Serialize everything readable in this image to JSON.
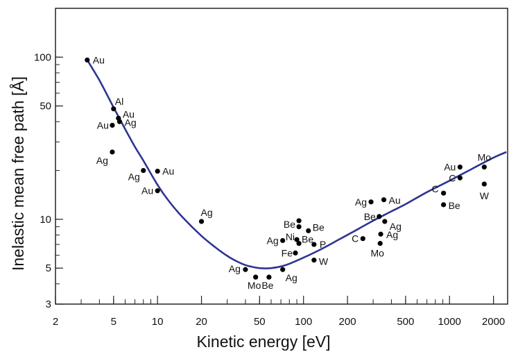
{
  "chart_data": {
    "type": "scatter",
    "xlabel": "Kinetic energy [eV]",
    "ylabel": "Inelastic mean free path [Å]",
    "xscale": "log",
    "yscale": "log",
    "xlim": [
      2,
      2500
    ],
    "ylim": [
      3,
      200
    ],
    "grid": false,
    "x_ticks": [
      {
        "value": 2,
        "label": "2"
      },
      {
        "value": 5,
        "label": "5"
      },
      {
        "value": 10,
        "label": "10"
      },
      {
        "value": 20,
        "label": "20"
      },
      {
        "value": 50,
        "label": "50"
      },
      {
        "value": 100,
        "label": "100"
      },
      {
        "value": 200,
        "label": "200"
      },
      {
        "value": 500,
        "label": "500"
      },
      {
        "value": 1000,
        "label": "1000"
      },
      {
        "value": 2000,
        "label": "2000"
      }
    ],
    "y_ticks": [
      {
        "value": 3,
        "label": "3"
      },
      {
        "value": 5,
        "label": "5"
      },
      {
        "value": 10,
        "label": "10"
      },
      {
        "value": 50,
        "label": "50"
      },
      {
        "value": 100,
        "label": "100"
      }
    ],
    "points": [
      {
        "label": "Au",
        "x": 3.3,
        "y": 96
      },
      {
        "label": "Al",
        "x": 5,
        "y": 48
      },
      {
        "label": "Au",
        "x": 5.4,
        "y": 42
      },
      {
        "label": "Au",
        "x": 4.9,
        "y": 38
      },
      {
        "label": "Ag",
        "x": 5.5,
        "y": 40
      },
      {
        "label": "Ag",
        "x": 4.9,
        "y": 26
      },
      {
        "label": "Ag",
        "x": 8,
        "y": 20
      },
      {
        "label": "Au",
        "x": 10,
        "y": 19.8
      },
      {
        "label": "Au",
        "x": 10,
        "y": 15
      },
      {
        "label": "Ag",
        "x": 20,
        "y": 9.7
      },
      {
        "label": "Ag",
        "x": 40,
        "y": 4.9
      },
      {
        "label": "Mo",
        "x": 47,
        "y": 4.4
      },
      {
        "label": "Be",
        "x": 58,
        "y": 4.4
      },
      {
        "label": "Ag",
        "x": 72,
        "y": 4.9
      },
      {
        "label": "Be",
        "x": 93,
        "y": 9.8
      },
      {
        "label": "Be",
        "x": 93,
        "y": 9.0
      },
      {
        "label": "Be",
        "x": 108,
        "y": 8.5
      },
      {
        "label": "Ni",
        "x": 90,
        "y": 7.5
      },
      {
        "label": "Ag",
        "x": 72,
        "y": 7.4
      },
      {
        "label": "Be",
        "x": 93,
        "y": 7.1
      },
      {
        "label": "P",
        "x": 118,
        "y": 7.0
      },
      {
        "label": "Fe",
        "x": 88,
        "y": 6.2
      },
      {
        "label": "W",
        "x": 118,
        "y": 5.6
      },
      {
        "label": "Ag",
        "x": 290,
        "y": 12.8
      },
      {
        "label": "Au",
        "x": 355,
        "y": 13.2
      },
      {
        "label": "Be",
        "x": 330,
        "y": 10.4
      },
      {
        "label": "Ag",
        "x": 360,
        "y": 9.7
      },
      {
        "label": "Ag",
        "x": 338,
        "y": 8.1
      },
      {
        "label": "C",
        "x": 255,
        "y": 7.6
      },
      {
        "label": "Mo",
        "x": 335,
        "y": 7.1
      },
      {
        "label": "C",
        "x": 910,
        "y": 14.5
      },
      {
        "label": "Be",
        "x": 910,
        "y": 12.3
      },
      {
        "label": "Au",
        "x": 1180,
        "y": 21
      },
      {
        "label": "C",
        "x": 1180,
        "y": 18
      },
      {
        "label": "Mo",
        "x": 1730,
        "y": 21
      },
      {
        "label": "W",
        "x": 1730,
        "y": 16.5
      }
    ],
    "curve": {
      "color": "#2c3590",
      "x": [
        3.3,
        4,
        5,
        6,
        7,
        8,
        10,
        12,
        15,
        20,
        25,
        30,
        35,
        40,
        45,
        50,
        55,
        60,
        70,
        80,
        100,
        130,
        170,
        220,
        300,
        400,
        500,
        700,
        1000,
        1400,
        2000,
        2450
      ],
      "y": [
        96,
        72,
        49,
        36,
        28,
        23,
        16.3,
        12.9,
        10.2,
        7.9,
        6.7,
        5.95,
        5.5,
        5.22,
        5.08,
        5.0,
        4.98,
        5.0,
        5.12,
        5.32,
        5.8,
        6.5,
        7.4,
        8.4,
        9.8,
        11.2,
        12.4,
        14.7,
        17.3,
        20.3,
        24.0,
        26.0
      ]
    },
    "point_color": "#000000"
  }
}
